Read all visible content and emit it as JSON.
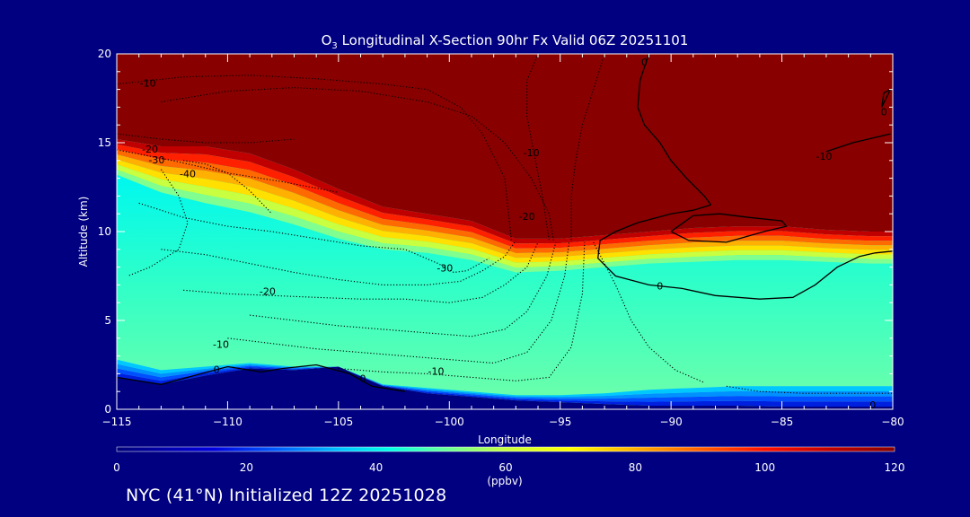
{
  "chart_data": {
    "type": "heatmap",
    "title_pre": "O",
    "title_sub": "3",
    "title_post": " Longitudinal X-Section 90hr  Fx Valid 06Z 20251101",
    "xlabel": "Longitude",
    "ylabel": "Altitude (km)",
    "xlim": [
      -115,
      -80
    ],
    "ylim": [
      0,
      20
    ],
    "x_ticks": [
      -115,
      -110,
      -105,
      -100,
      -95,
      -90,
      -85,
      -80
    ],
    "x_tick_labels": [
      "−115",
      "−110",
      "−105",
      "−100",
      "−95",
      "−90",
      "−85",
      "−80"
    ],
    "y_ticks": [
      0,
      5,
      10,
      15,
      20
    ],
    "y_tick_labels": [
      "0",
      "5",
      "10",
      "15",
      "20"
    ],
    "colorbar": {
      "label": "(ppbv)",
      "ticks": [
        0,
        20,
        40,
        60,
        80,
        100,
        120
      ],
      "tick_labels": [
        "0",
        "20",
        "40",
        "60",
        "80",
        "100",
        "120"
      ],
      "range": [
        0,
        120
      ],
      "stops": [
        {
          "v": 0,
          "c": "#000078"
        },
        {
          "v": 15,
          "c": "#0000e0"
        },
        {
          "v": 25,
          "c": "#0060ff"
        },
        {
          "v": 35,
          "c": "#00c8ff"
        },
        {
          "v": 42,
          "c": "#00ffe8"
        },
        {
          "v": 50,
          "c": "#60ffa0"
        },
        {
          "v": 60,
          "c": "#c8ff40"
        },
        {
          "v": 70,
          "c": "#ffff00"
        },
        {
          "v": 80,
          "c": "#ffb000"
        },
        {
          "v": 90,
          "c": "#ff6000"
        },
        {
          "v": 100,
          "c": "#ff1000"
        },
        {
          "v": 110,
          "c": "#c00000"
        },
        {
          "v": 120,
          "c": "#880000"
        }
      ]
    },
    "boundaries": {
      "x": [
        -115,
        -113,
        -111,
        -109,
        -107,
        -105,
        -103,
        -101,
        -99,
        -97,
        -95,
        -93,
        -91,
        -89,
        -87,
        -85,
        -83,
        -81,
        -80
      ],
      "tropopause_km": [
        14.8,
        13.8,
        13.2,
        12.7,
        12.0,
        11.2,
        10.6,
        10.4,
        10.0,
        9.3,
        9.4,
        9.6,
        9.8,
        9.9,
        10.0,
        10.0,
        9.9,
        9.8,
        9.8
      ],
      "trop_top_km": [
        15.2,
        14.8,
        14.8,
        14.4,
        13.5,
        12.4,
        11.4,
        11.0,
        10.6,
        9.6,
        9.6,
        9.8,
        10.0,
        10.2,
        10.3,
        10.3,
        10.1,
        10.0,
        10.0
      ],
      "boundary_layer_km": [
        2.8,
        2.2,
        2.4,
        2.6,
        2.4,
        2.4,
        1.4,
        1.2,
        1.0,
        0.8,
        0.8,
        0.9,
        1.1,
        1.2,
        1.3,
        1.3,
        1.3,
        1.3,
        1.3
      ],
      "terrain_km": [
        1.8,
        1.4,
        1.9,
        2.3,
        2.2,
        2.4,
        1.3,
        0.9,
        0.7,
        0.5,
        0.4,
        0.3,
        0.2,
        0.2,
        0.2,
        0.15,
        0.15,
        0.15,
        0.15
      ]
    },
    "contours": [
      {
        "style": "solid",
        "x": [
          -115,
          -113,
          -111.5,
          -110,
          -108.5,
          -107.5,
          -106,
          -104.5,
          -103.5,
          -102
        ],
        "y": [
          1.8,
          1.4,
          1.9,
          2.4,
          2.1,
          2.3,
          2.5,
          2.0,
          1.3,
          1.0
        ]
      },
      {
        "style": "solid",
        "x": [
          -91,
          -91.4,
          -91.5,
          -91.2,
          -90.5,
          -90,
          -89.3,
          -88.5,
          -88.2
        ],
        "y": [
          20,
          18.5,
          17,
          16,
          15,
          14,
          13,
          12,
          11.5
        ]
      },
      {
        "style": "solid",
        "x": [
          -88.2,
          -89,
          -90,
          -91.5,
          -92.5,
          -93.2,
          -93.3,
          -92.5,
          -91,
          -89.5,
          -88,
          -86,
          -84.5,
          -83.5,
          -82.5,
          -81.5,
          -80.8,
          -80
        ],
        "y": [
          11.5,
          11.2,
          11.0,
          10.5,
          10.0,
          9.5,
          8.5,
          7.5,
          7.0,
          6.8,
          6.4,
          6.2,
          6.3,
          7.0,
          8.0,
          8.6,
          8.8,
          8.9
        ]
      },
      {
        "style": "solid",
        "x": [
          -90,
          -89,
          -87.8,
          -86.5,
          -85,
          -84.8,
          -85.8,
          -87.5,
          -89.2,
          -90
        ],
        "y": [
          10.0,
          10.9,
          11.0,
          10.8,
          10.6,
          10.3,
          10.0,
          9.4,
          9.5,
          10.0
        ]
      },
      {
        "style": "solid",
        "x": [
          -83,
          -81.8,
          -80.1
        ],
        "y": [
          14.5,
          15.0,
          15.5
        ]
      },
      {
        "style": "solid",
        "x": [
          -80.1,
          -80.5,
          -80.4,
          -80.1
        ],
        "y": [
          18.0,
          17.0,
          17.8,
          18.0
        ]
      },
      {
        "style": "dotted",
        "x": [
          -115,
          -112,
          -109,
          -106,
          -103,
          -101,
          -99.5,
          -98.5,
          -97.5,
          -97.2
        ],
        "y": [
          18.3,
          18.7,
          18.8,
          18.6,
          18.3,
          18.0,
          17.0,
          15.5,
          13.0,
          9.5
        ]
      },
      {
        "style": "dotted",
        "x": [
          -113,
          -110,
          -107,
          -104,
          -101,
          -99,
          -97.5,
          -96.3,
          -95.5,
          -95.3
        ],
        "y": [
          17.3,
          17.9,
          18.1,
          17.9,
          17.3,
          16.5,
          15.0,
          13.0,
          11.0,
          9.5
        ]
      },
      {
        "style": "dotted",
        "x": [
          -96,
          -96.5,
          -96.5,
          -96.2,
          -95.8,
          -95.5
        ],
        "y": [
          20,
          18.5,
          16.5,
          14.5,
          12.0,
          9.5
        ]
      },
      {
        "style": "dotted",
        "x": [
          -93,
          -93.5,
          -94,
          -94.3,
          -94.5,
          -94.5,
          -94.5
        ],
        "y": [
          20,
          18.0,
          16.0,
          14.0,
          12.0,
          10.5,
          9.5
        ]
      },
      {
        "style": "dotted",
        "x": [
          -115,
          -113,
          -111,
          -109,
          -107
        ],
        "y": [
          15.5,
          15.2,
          15.0,
          15.0,
          15.2
        ]
      },
      {
        "style": "dotted",
        "x": [
          -115,
          -112.5,
          -110,
          -107.5,
          -105
        ],
        "y": [
          14.6,
          14.0,
          13.3,
          12.8,
          12.2
        ]
      },
      {
        "style": "dotted",
        "x": [
          -112,
          -111,
          -110,
          -109,
          -108
        ],
        "y": [
          14.0,
          13.8,
          13.3,
          12.3,
          11.0
        ]
      },
      {
        "style": "dotted",
        "x": [
          -114,
          -112,
          -110,
          -108,
          -106,
          -104,
          -102,
          -100.5,
          -99.8,
          -99.2,
          -98.2
        ],
        "y": [
          11.6,
          10.8,
          10.3,
          10.0,
          9.6,
          9.2,
          9.0,
          8.2,
          7.7,
          7.8,
          8.5
        ]
      },
      {
        "style": "dotted",
        "x": [
          -113,
          -111,
          -109,
          -107,
          -105,
          -103,
          -101,
          -99.5,
          -98.5,
          -97.5,
          -97.0
        ],
        "y": [
          9.0,
          8.7,
          8.2,
          7.7,
          7.3,
          7.0,
          7.0,
          7.2,
          7.8,
          8.6,
          9.5
        ]
      },
      {
        "style": "dotted",
        "x": [
          -112,
          -110,
          -108,
          -106,
          -104,
          -102,
          -100,
          -98.5,
          -97.5,
          -96.5,
          -96.0
        ],
        "y": [
          6.7,
          6.5,
          6.4,
          6.3,
          6.2,
          6.2,
          6.0,
          6.3,
          7.0,
          8.0,
          9.4
        ]
      },
      {
        "style": "dotted",
        "x": [
          -109,
          -107,
          -105,
          -103,
          -101,
          -99,
          -97.5,
          -96.5,
          -95.6,
          -95.2
        ],
        "y": [
          5.3,
          5.0,
          4.7,
          4.5,
          4.3,
          4.1,
          4.5,
          5.5,
          7.5,
          9.4
        ]
      },
      {
        "style": "dotted",
        "x": [
          -110,
          -108,
          -106,
          -104,
          -102,
          -100,
          -98,
          -96.5,
          -95.4,
          -94.8,
          -94.6
        ],
        "y": [
          4.0,
          3.7,
          3.4,
          3.2,
          3.0,
          2.8,
          2.6,
          3.2,
          5.0,
          7.5,
          9.4
        ]
      },
      {
        "style": "dotted",
        "x": [
          -105,
          -103,
          -101,
          -99,
          -97,
          -95.5,
          -94.5,
          -94.0,
          -93.9
        ],
        "y": [
          2.3,
          2.1,
          2.0,
          1.8,
          1.6,
          1.8,
          3.5,
          6.5,
          9.4
        ]
      },
      {
        "style": "dotted",
        "x": [
          -93.5,
          -92.5,
          -91.8,
          -91,
          -89.8,
          -88.5
        ],
        "y": [
          9.4,
          7.0,
          5.0,
          3.5,
          2.2,
          1.5
        ]
      },
      {
        "style": "dotted",
        "x": [
          -87.5,
          -86,
          -84,
          -82,
          -80
        ],
        "y": [
          1.3,
          1.0,
          0.9,
          0.9,
          0.9
        ]
      },
      {
        "style": "dotted",
        "x": [
          -113,
          -112.2,
          -111.8,
          -112.2,
          -113.5,
          -114.5
        ],
        "y": [
          13.5,
          12.0,
          10.5,
          9.0,
          8.0,
          7.5
        ]
      }
    ],
    "contour_labels": [
      {
        "text": "-10",
        "x": -113.6,
        "y": 18.3
      },
      {
        "text": "-20",
        "x": -113.5,
        "y": 14.6
      },
      {
        "text": "-30",
        "x": -113.2,
        "y": 14.0
      },
      {
        "text": "-40",
        "x": -111.8,
        "y": 13.2
      },
      {
        "text": "-10",
        "x": -96.3,
        "y": 14.4
      },
      {
        "text": "-20",
        "x": -96.5,
        "y": 10.8
      },
      {
        "text": "-30",
        "x": -100.2,
        "y": 7.9
      },
      {
        "text": "-20",
        "x": -108.2,
        "y": 6.6
      },
      {
        "text": "-10",
        "x": -110.3,
        "y": 3.6
      },
      {
        "text": "-10",
        "x": -100.6,
        "y": 2.1
      },
      {
        "text": "0",
        "x": -91.2,
        "y": 19.5
      },
      {
        "text": "0",
        "x": -90.5,
        "y": 6.9
      },
      {
        "text": "0",
        "x": -110.5,
        "y": 2.2
      },
      {
        "text": "0",
        "x": -103.9,
        "y": 1.7
      },
      {
        "text": "-10",
        "x": -83.1,
        "y": 14.2
      },
      {
        "text": "0",
        "x": -80.4,
        "y": 16.7
      },
      {
        "text": "0",
        "x": -80.9,
        "y": 0.2
      }
    ]
  },
  "footer": {
    "text": "NYC (41°N) Initialized 12Z 20251028"
  }
}
